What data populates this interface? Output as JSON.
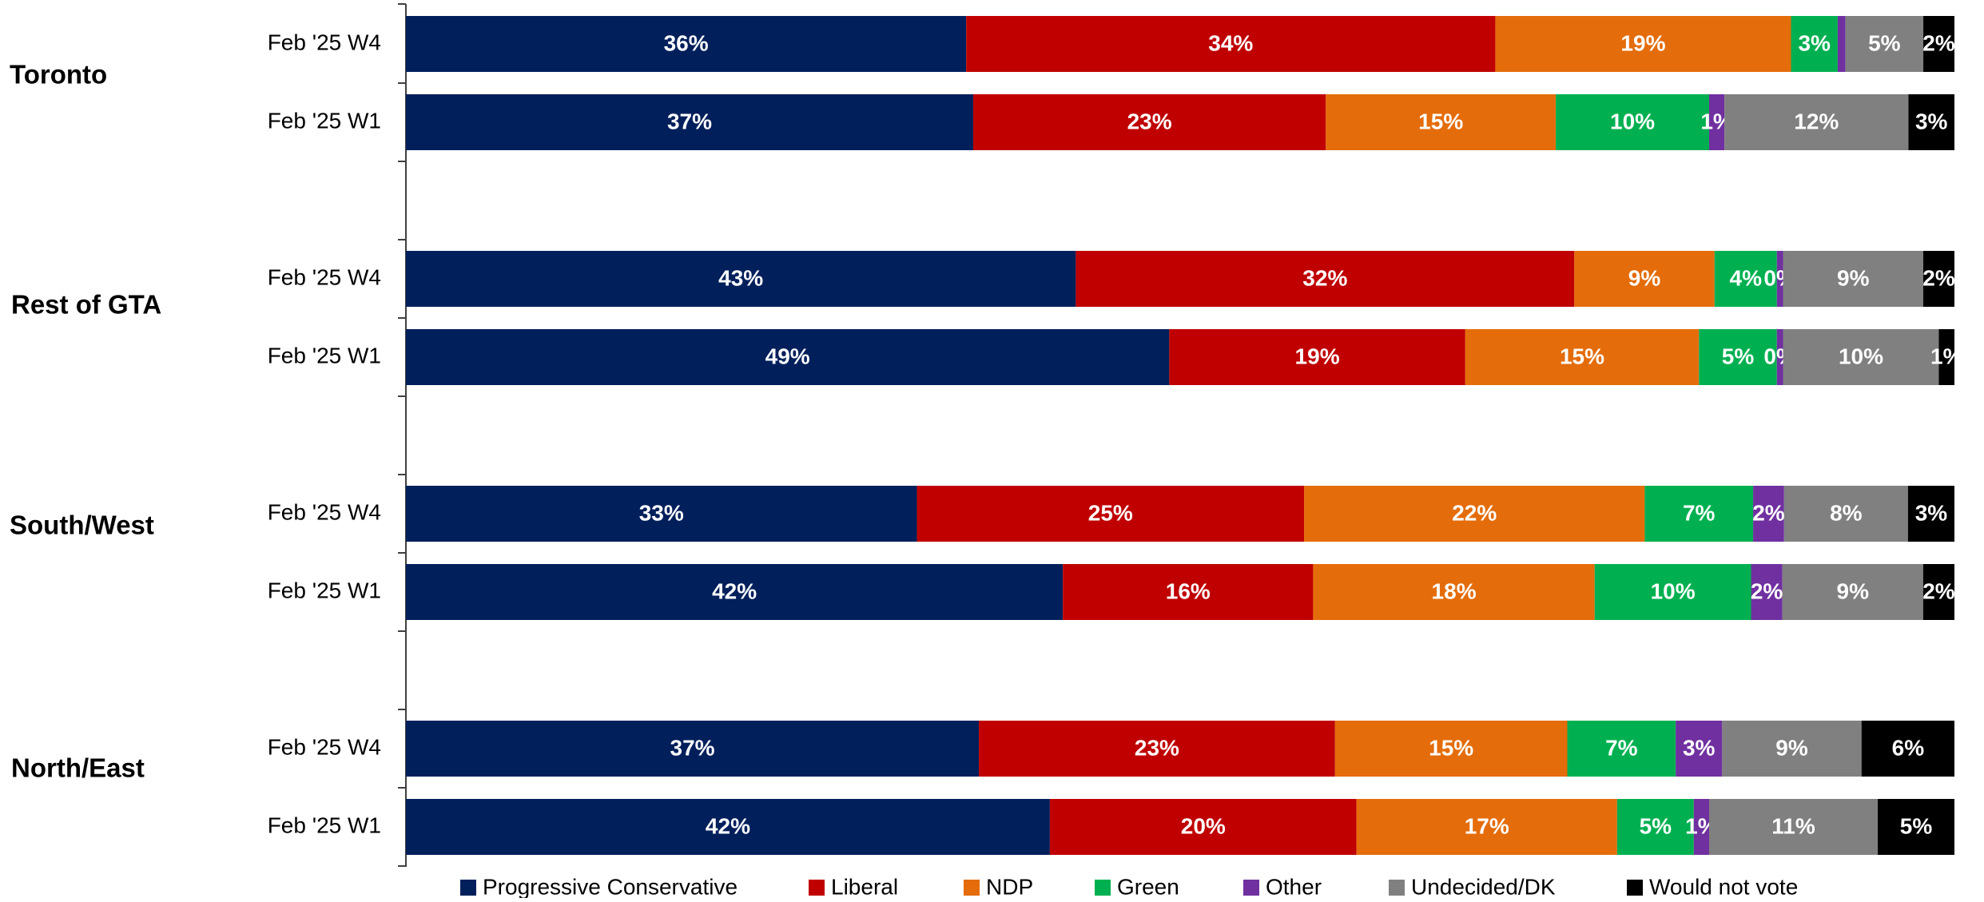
{
  "chart_data": {
    "type": "bar",
    "orientation": "horizontal-stacked-100",
    "title": "",
    "xlabel": "",
    "ylabel": "",
    "xlim": [
      0,
      100
    ],
    "legend_position": "bottom",
    "series": [
      {
        "name": "Progressive Conservative",
        "color": "#001F5B"
      },
      {
        "name": "Liberal",
        "color": "#C00000"
      },
      {
        "name": "NDP",
        "color": "#E46C0A"
      },
      {
        "name": "Green",
        "color": "#00B050"
      },
      {
        "name": "Other",
        "color": "#7030A0"
      },
      {
        "name": "Undecided/DK",
        "color": "#808080"
      },
      {
        "name": "Would not vote",
        "color": "#000000"
      }
    ],
    "groups": [
      {
        "region": "Toronto",
        "rows": [
          {
            "label": "Feb '25 W4",
            "values": [
              36,
              34,
              19,
              3,
              0.5,
              5,
              2
            ],
            "labels": [
              "36%",
              "34%",
              "19%",
              "3%",
              "",
              "5%",
              "2%"
            ]
          },
          {
            "label": "Feb '25 W1",
            "values": [
              37,
              23,
              15,
              10,
              1,
              12,
              3
            ],
            "labels": [
              "37%",
              "23%",
              "15%",
              "10%",
              "1%",
              "12%",
              "3%"
            ]
          }
        ]
      },
      {
        "region": "Rest of GTA",
        "rows": [
          {
            "label": "Feb '25 W4",
            "values": [
              43,
              32,
              9,
              4,
              0.4,
              9,
              2
            ],
            "labels": [
              "43%",
              "32%",
              "9%",
              "4%",
              "0%",
              "9%",
              "2%"
            ]
          },
          {
            "label": "Feb '25 W1",
            "values": [
              49,
              19,
              15,
              5,
              0.4,
              10,
              1
            ],
            "labels": [
              "49%",
              "19%",
              "15%",
              "5%",
              "0%",
              "10%",
              "1%"
            ]
          }
        ]
      },
      {
        "region": "South/West",
        "rows": [
          {
            "label": "Feb '25 W4",
            "values": [
              33,
              25,
              22,
              7,
              2,
              8,
              3
            ],
            "labels": [
              "33%",
              "25%",
              "22%",
              "7%",
              "2%",
              "8%",
              "3%"
            ]
          },
          {
            "label": "Feb '25 W1",
            "values": [
              42,
              16,
              18,
              10,
              2,
              9,
              2
            ],
            "labels": [
              "42%",
              "16%",
              "18%",
              "10%",
              "2%",
              "9%",
              "2%"
            ]
          }
        ]
      },
      {
        "region": "North/East",
        "rows": [
          {
            "label": "Feb '25 W4",
            "values": [
              37,
              23,
              15,
              7,
              3,
              9,
              6
            ],
            "labels": [
              "37%",
              "23%",
              "15%",
              "7%",
              "3%",
              "9%",
              "6%"
            ]
          },
          {
            "label": "Feb '25 W1",
            "values": [
              42,
              20,
              17,
              5,
              1,
              11,
              5
            ],
            "labels": [
              "42%",
              "20%",
              "17%",
              "5%",
              "1%",
              "11%",
              "5%"
            ]
          }
        ]
      }
    ]
  }
}
